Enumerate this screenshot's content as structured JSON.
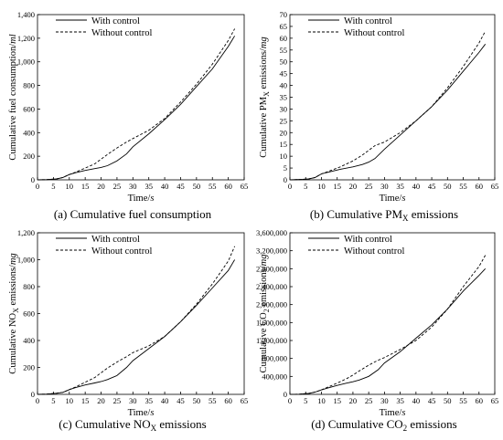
{
  "panels": [
    {
      "caption": {
        "main": "(a) Cumulative fuel consumption",
        "sub": "",
        "tail": ""
      },
      "ylabel": {
        "main": "Cumulative fuel consumption/",
        "sub": "",
        "tail": "",
        "unit": "ml"
      },
      "xlabel": {
        "main": "Time/",
        "unit": "s"
      }
    },
    {
      "caption": {
        "main": "(b) Cumulative PM",
        "sub": "X",
        "tail": " emissions"
      },
      "ylabel": {
        "main": "Cumulative PM",
        "sub": "X",
        "tail": " emissions/",
        "unit": "mg"
      },
      "xlabel": {
        "main": "Time/",
        "unit": "s"
      }
    },
    {
      "caption": {
        "main": "(c) Cumulative NO",
        "sub": "X",
        "tail": " emissions"
      },
      "ylabel": {
        "main": "Cumulative NO",
        "sub": "X",
        "tail": " emissions/",
        "unit": "mg"
      },
      "xlabel": {
        "main": "Time/",
        "unit": "s"
      }
    },
    {
      "caption": {
        "main": "(d) Cumulative CO",
        "sub": "2",
        "tail": " emissions"
      },
      "ylabel": {
        "main": "Cumulative CO",
        "sub": "2",
        "tail": " emissions/",
        "unit": "mg"
      },
      "xlabel": {
        "main": "Time/",
        "unit": "s"
      }
    }
  ],
  "chart_data": [
    {
      "type": "line",
      "title": "(a) Cumulative fuel consumption",
      "xlabel": "Time/s",
      "ylabel": "Cumulative fuel consumption/ml",
      "xlim": [
        0,
        65
      ],
      "ylim": [
        0,
        1400
      ],
      "xticks": [
        0,
        5,
        10,
        15,
        20,
        25,
        30,
        35,
        40,
        45,
        50,
        55,
        60,
        65
      ],
      "yticks": [
        0,
        200,
        400,
        600,
        800,
        1000,
        1200,
        1400
      ],
      "ytick_labels": [
        "0",
        "200",
        "400",
        "600",
        "800",
        "1,000",
        "1,200",
        "1,400"
      ],
      "legend_position": "top-left",
      "series": [
        {
          "name": "With control",
          "style": "solid",
          "x": [
            0,
            3,
            6,
            8,
            10,
            12,
            15,
            18,
            20,
            22,
            25,
            28,
            30,
            35,
            40,
            45,
            50,
            55,
            60,
            62
          ],
          "y": [
            0,
            2,
            8,
            20,
            45,
            60,
            80,
            95,
            105,
            120,
            160,
            220,
            280,
            390,
            510,
            640,
            790,
            940,
            1130,
            1220
          ]
        },
        {
          "name": "Without control",
          "style": "dashed",
          "x": [
            0,
            3,
            6,
            8,
            10,
            12,
            15,
            18,
            20,
            22,
            25,
            28,
            30,
            35,
            40,
            45,
            50,
            55,
            60,
            62
          ],
          "y": [
            0,
            2,
            8,
            20,
            45,
            65,
            100,
            135,
            175,
            215,
            270,
            320,
            350,
            420,
            520,
            660,
            810,
            980,
            1180,
            1280
          ]
        }
      ]
    },
    {
      "type": "line",
      "title": "(b) Cumulative PMX emissions",
      "xlabel": "Time/s",
      "ylabel": "Cumulative PMX emissions/mg",
      "xlim": [
        0,
        65
      ],
      "ylim": [
        0,
        70
      ],
      "xticks": [
        0,
        5,
        10,
        15,
        20,
        25,
        30,
        35,
        40,
        45,
        50,
        55,
        60,
        65
      ],
      "yticks": [
        0,
        5,
        10,
        15,
        20,
        25,
        30,
        35,
        40,
        45,
        50,
        55,
        60,
        65,
        70
      ],
      "ytick_labels": [
        "0",
        "5",
        "10",
        "15",
        "20",
        "25",
        "30",
        "35",
        "40",
        "45",
        "50",
        "55",
        "60",
        "65",
        "70"
      ],
      "legend_position": "top-left",
      "series": [
        {
          "name": "With control",
          "style": "solid",
          "x": [
            0,
            4,
            6,
            8,
            10,
            13,
            16,
            20,
            23,
            25,
            27,
            30,
            35,
            40,
            45,
            50,
            55,
            60,
            62
          ],
          "y": [
            0,
            0.2,
            0.4,
            1,
            2.5,
            3.5,
            4.5,
            5.5,
            6.5,
            7.5,
            9,
            13,
            19,
            25,
            31,
            38,
            46,
            54,
            57.5
          ]
        },
        {
          "name": "Without control",
          "style": "dashed",
          "x": [
            0,
            4,
            6,
            8,
            10,
            13,
            16,
            20,
            23,
            25,
            27,
            30,
            35,
            40,
            45,
            50,
            55,
            60,
            62
          ],
          "y": [
            0,
            0.2,
            0.4,
            1,
            2.5,
            4,
            5.5,
            8,
            10.5,
            12.5,
            14.5,
            16,
            20,
            25,
            31,
            39,
            48,
            58,
            63
          ]
        }
      ]
    },
    {
      "type": "line",
      "title": "(c) Cumulative NOX emissions",
      "xlabel": "Time/s",
      "ylabel": "Cumulative NOX emissions/mg",
      "xlim": [
        0,
        65
      ],
      "ylim": [
        0,
        1200
      ],
      "xticks": [
        0,
        5,
        10,
        15,
        20,
        25,
        30,
        35,
        40,
        45,
        50,
        55,
        60,
        65
      ],
      "yticks": [
        0,
        200,
        400,
        600,
        800,
        1000,
        1200
      ],
      "ytick_labels": [
        "0",
        "200",
        "400",
        "600",
        "800",
        "1,000",
        "1,200"
      ],
      "legend_position": "top-left",
      "series": [
        {
          "name": "With control",
          "style": "solid",
          "x": [
            0,
            3,
            6,
            8,
            10,
            12,
            15,
            18,
            20,
            22,
            25,
            28,
            30,
            35,
            40,
            45,
            50,
            55,
            60,
            62
          ],
          "y": [
            0,
            2,
            8,
            15,
            35,
            50,
            70,
            85,
            95,
            110,
            140,
            200,
            250,
            340,
            430,
            540,
            660,
            790,
            920,
            1000
          ]
        },
        {
          "name": "Without control",
          "style": "dashed",
          "x": [
            0,
            3,
            6,
            8,
            10,
            12,
            15,
            18,
            20,
            22,
            25,
            28,
            30,
            35,
            40,
            45,
            50,
            55,
            60,
            62
          ],
          "y": [
            0,
            2,
            8,
            15,
            35,
            55,
            90,
            125,
            160,
            195,
            240,
            280,
            310,
            360,
            430,
            540,
            670,
            820,
            990,
            1100
          ]
        }
      ]
    },
    {
      "type": "line",
      "title": "(d) Cumulative CO2 emissions",
      "xlabel": "Time/s",
      "ylabel": "Cumulative CO2 emissions/mg",
      "xlim": [
        0,
        65
      ],
      "ylim": [
        0,
        3600000
      ],
      "xticks": [
        0,
        5,
        10,
        15,
        20,
        25,
        30,
        35,
        40,
        45,
        50,
        55,
        60,
        65
      ],
      "yticks": [
        0,
        400000,
        800000,
        1200000,
        1600000,
        2000000,
        2400000,
        2800000,
        3200000,
        3600000
      ],
      "ytick_labels": [
        "0",
        "400,000",
        "800,000",
        "1,200,000",
        "1,600,000",
        "2,000,000",
        "2,400,000",
        "2,800,000",
        "3,200,000",
        "3,600,000"
      ],
      "legend_position": "top-left",
      "series": [
        {
          "name": "With control",
          "style": "solid",
          "x": [
            0,
            3,
            6,
            8,
            10,
            12,
            15,
            18,
            20,
            22,
            25,
            28,
            30,
            35,
            40,
            45,
            50,
            55,
            60,
            62
          ],
          "y": [
            0,
            5000,
            20000,
            50000,
            100000,
            140000,
            200000,
            250000,
            280000,
            320000,
            400000,
            550000,
            700000,
            950000,
            1250000,
            1550000,
            1900000,
            2300000,
            2650000,
            2800000
          ]
        },
        {
          "name": "Without control",
          "style": "dashed",
          "x": [
            0,
            3,
            6,
            8,
            10,
            12,
            15,
            18,
            20,
            22,
            25,
            28,
            30,
            35,
            40,
            45,
            50,
            55,
            60,
            62
          ],
          "y": [
            0,
            5000,
            20000,
            50000,
            100000,
            160000,
            250000,
            350000,
            430000,
            520000,
            650000,
            760000,
            820000,
            1000000,
            1200000,
            1500000,
            1900000,
            2400000,
            2850000,
            3100000
          ]
        }
      ]
    }
  ]
}
